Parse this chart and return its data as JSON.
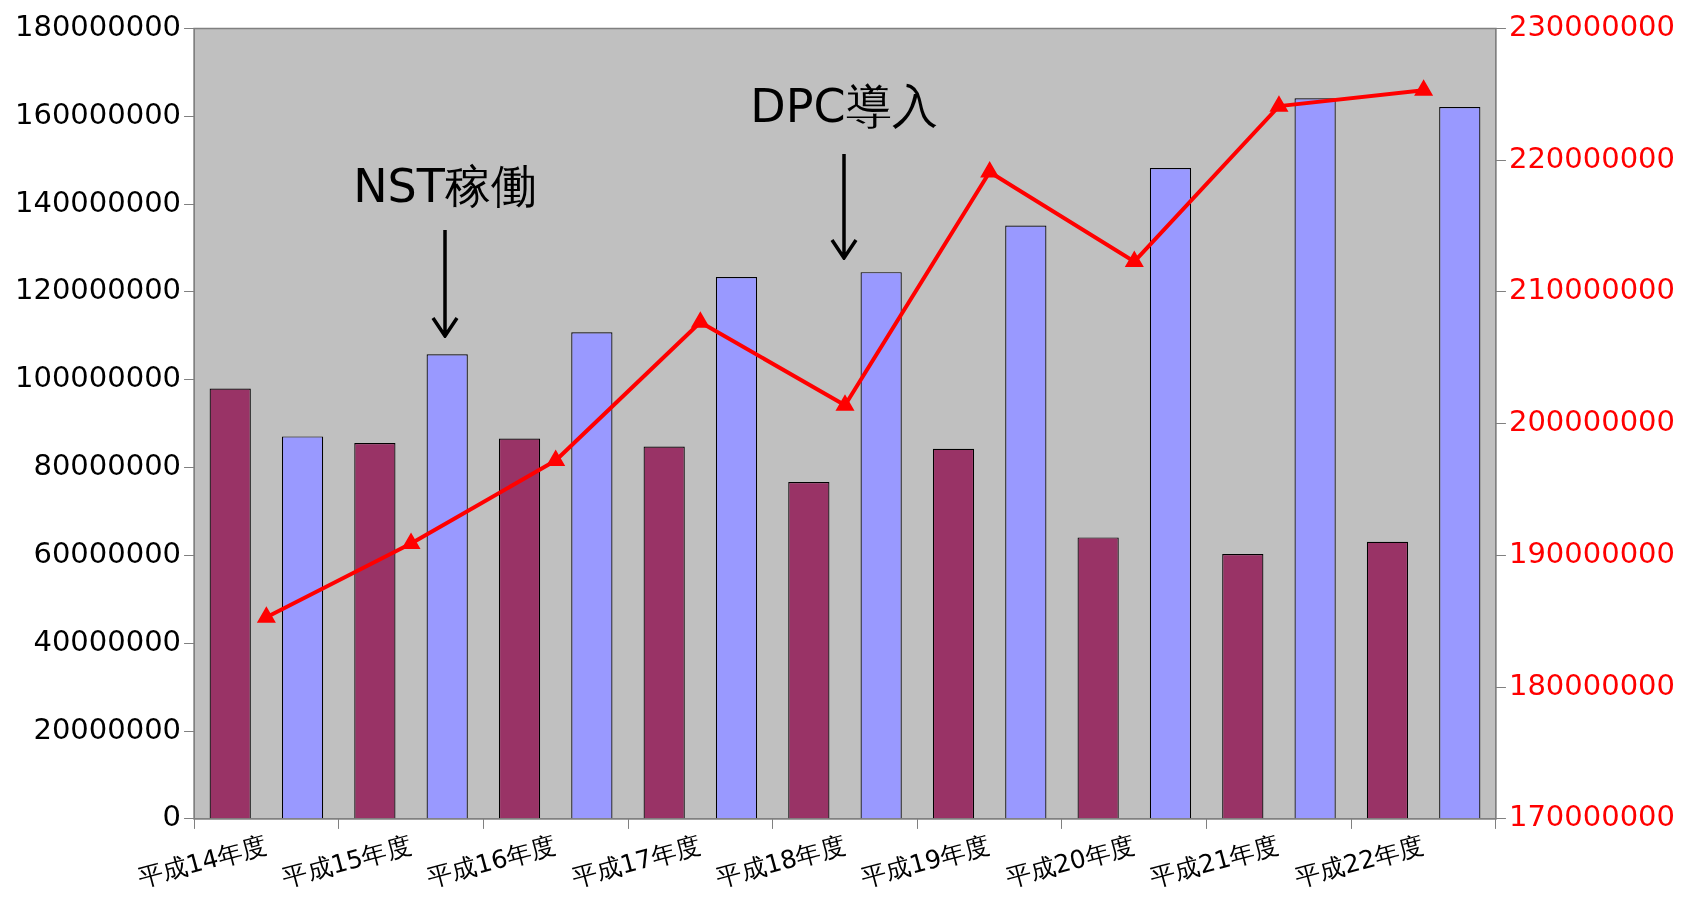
{
  "chart_data": {
    "type": "bar",
    "categories": [
      "平成14年度",
      "平成15年度",
      "平成16年度",
      "平成17年度",
      "平成18年度",
      "平成19年度",
      "平成20年度",
      "平成21年度",
      "平成22年度"
    ],
    "series": [
      {
        "color": "#993366",
        "values": [
          98000000,
          85600000,
          86600000,
          84800000,
          76700000,
          84300000,
          64100000,
          60300000,
          63100000
        ]
      },
      {
        "color": "#9999ff",
        "values": [
          87100000,
          105800000,
          110800000,
          123400000,
          124500000,
          135100000,
          148200000,
          164100000,
          162100000
        ]
      },
      {
        "type": "line",
        "axis": "y2",
        "color": "#ff0000",
        "marker": "triangle",
        "values": [
          185300000,
          190900000,
          197200000,
          207700000,
          201400000,
          219100000,
          212300000,
          224100000,
          225300000
        ]
      }
    ],
    "ylim": [
      0,
      180000000
    ],
    "yticks": [
      0,
      20000000,
      40000000,
      60000000,
      80000000,
      100000000,
      120000000,
      140000000,
      160000000,
      180000000
    ],
    "y2lim": [
      170000000,
      230000000
    ],
    "y2ticks": [
      170000000,
      180000000,
      190000000,
      200000000,
      210000000,
      220000000,
      230000000
    ],
    "annotations": [
      "NST稼働",
      "DPC導入"
    ],
    "grid": false,
    "legend": false
  }
}
